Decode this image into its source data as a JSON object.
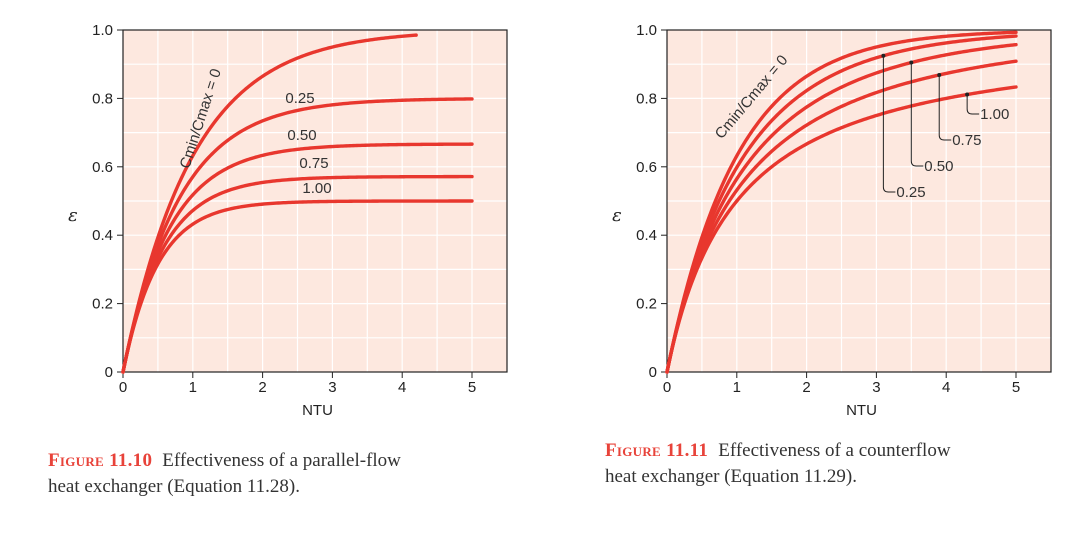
{
  "chart_data": [
    {
      "type": "line",
      "name": "parallel-flow",
      "xlabel": "NTU",
      "ylabel": "ε",
      "xlim": [
        0,
        5
      ],
      "ylim": [
        0,
        1.0
      ],
      "xticks": [
        "0",
        "1",
        "2",
        "3",
        "4",
        "5"
      ],
      "yticks": [
        "0",
        "0.2",
        "0.4",
        "0.6",
        "0.8",
        "1.0"
      ],
      "grid": true,
      "series_param_label": "Cmin/Cmax = 0",
      "series": [
        {
          "cr": 0,
          "label": "",
          "ntu_max": 4.2
        },
        {
          "cr": 0.25,
          "label": "0.25",
          "ntu_max": 5
        },
        {
          "cr": 0.5,
          "label": "0.50",
          "ntu_max": 5
        },
        {
          "cr": 0.75,
          "label": "0.75",
          "ntu_max": 5
        },
        {
          "cr": 1.0,
          "label": "1.00",
          "ntu_max": 5
        }
      ]
    },
    {
      "type": "line",
      "name": "counterflow",
      "xlabel": "NTU",
      "ylabel": "ε",
      "xlim": [
        0,
        5
      ],
      "ylim": [
        0,
        1.0
      ],
      "xticks": [
        "0",
        "1",
        "2",
        "3",
        "4",
        "5"
      ],
      "yticks": [
        "0",
        "0.2",
        "0.4",
        "0.6",
        "0.8",
        "1.0"
      ],
      "grid": true,
      "series_param_label": "Cmin/Cmax = 0",
      "series": [
        {
          "cr": 0,
          "label": "",
          "ntu_max": 5
        },
        {
          "cr": 0.25,
          "label": "0.25",
          "ntu_max": 5,
          "marker_ntu": 3.1
        },
        {
          "cr": 0.5,
          "label": "0.50",
          "ntu_max": 5,
          "marker_ntu": 3.5
        },
        {
          "cr": 0.75,
          "label": "0.75",
          "ntu_max": 5,
          "marker_ntu": 3.9
        },
        {
          "cr": 1.0,
          "label": "1.00",
          "ntu_max": 5,
          "marker_ntu": 4.3
        }
      ]
    }
  ],
  "captions": {
    "left": {
      "fig": "Figure 11.10",
      "text": "Effectiveness of a parallel-flow",
      "line2": "heat exchanger (Equation 11.28)."
    },
    "right": {
      "fig": "Figure 11.11",
      "text": "Effectiveness of a counterflow",
      "line2": "heat exchanger (Equation 11.29)."
    }
  },
  "colors": {
    "plot_bg": "#fde8df",
    "grid": "#ffffff",
    "curve": "#e8372e",
    "frame": "#222222"
  }
}
